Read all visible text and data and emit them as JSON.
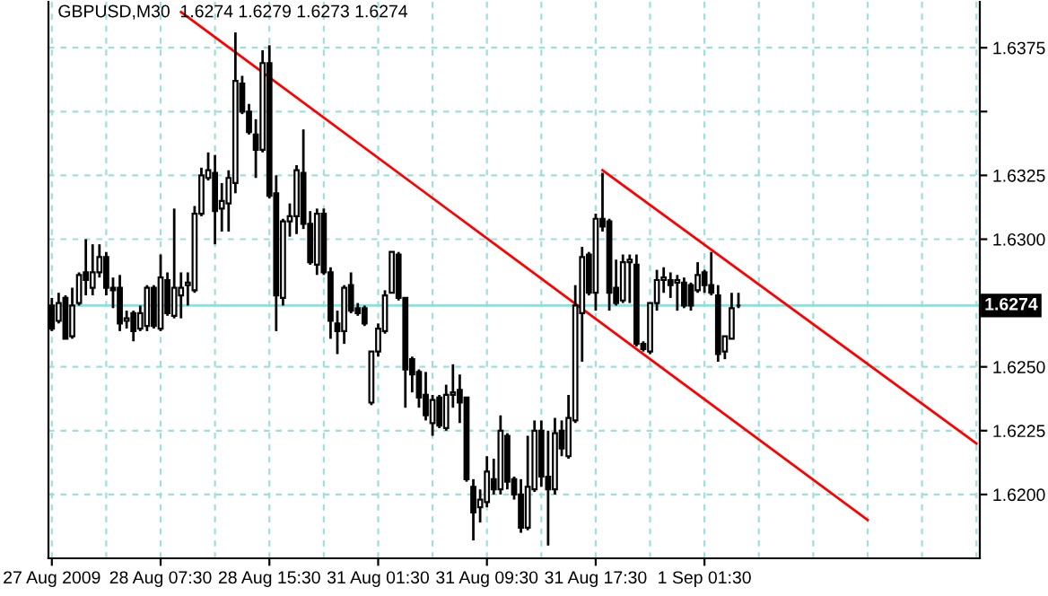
{
  "chart_data": {
    "type": "candlestick",
    "title": "GBPUSD,M30  1.6274 1.6279 1.6273 1.6274",
    "categories": [
      "27 Aug 2009",
      null,
      null,
      null,
      null,
      null,
      null,
      null,
      null,
      null,
      null,
      null,
      null,
      null,
      null,
      null,
      "28 Aug 07:30",
      null,
      null,
      null,
      null,
      null,
      null,
      null,
      null,
      null,
      null,
      null,
      null,
      null,
      null,
      null,
      "28 Aug 15:30",
      null,
      null,
      null,
      null,
      null,
      null,
      null,
      null,
      null,
      null,
      null,
      null,
      null,
      null,
      null,
      "31 Aug 01:30",
      null,
      null,
      null,
      null,
      null,
      null,
      null,
      null,
      null,
      null,
      null,
      null,
      null,
      null,
      null,
      "31 Aug 09:30",
      null,
      null,
      null,
      null,
      null,
      null,
      null,
      null,
      null,
      null,
      null,
      null,
      null,
      null,
      null,
      "31 Aug 17:30",
      null,
      null,
      null,
      null,
      null,
      null,
      null,
      null,
      null,
      null,
      null,
      null,
      null,
      null,
      null,
      "1 Sep 01:30",
      null,
      null,
      null,
      null,
      null,
      null,
      null,
      null,
      null,
      null,
      null,
      null,
      null,
      null,
      null,
      null,
      null,
      null,
      null,
      null,
      null,
      null,
      null,
      null,
      null,
      null,
      null,
      null,
      null,
      null,
      null,
      null,
      null,
      null,
      null,
      null,
      null,
      null,
      null,
      null
    ],
    "ohlc": [
      [
        1.6274,
        1.6277,
        1.6264,
        1.6265
      ],
      [
        1.6268,
        1.6279,
        1.6267,
        1.6275
      ],
      [
        1.6277,
        1.6278,
        1.6261,
        1.6261
      ],
      [
        1.6262,
        1.6281,
        1.6261,
        1.6274
      ],
      [
        1.6275,
        1.6287,
        1.6274,
        1.6286
      ],
      [
        1.6287,
        1.63,
        1.6278,
        1.6284
      ],
      [
        1.6281,
        1.6298,
        1.6278,
        1.6287
      ],
      [
        1.6287,
        1.6298,
        1.6285,
        1.6293
      ],
      [
        1.6293,
        1.6295,
        1.6278,
        1.6281
      ],
      [
        1.6281,
        1.6285,
        1.6273,
        1.628
      ],
      [
        1.6281,
        1.6286,
        1.6264,
        1.6267
      ],
      [
        1.6268,
        1.6272,
        1.6265,
        1.6269
      ],
      [
        1.6271,
        1.6272,
        1.626,
        1.6264
      ],
      [
        1.6265,
        1.6274,
        1.6264,
        1.6271
      ],
      [
        1.6266,
        1.6282,
        1.6264,
        1.6281
      ],
      [
        1.6281,
        1.6282,
        1.6265,
        1.6266
      ],
      [
        1.6265,
        1.6294,
        1.6264,
        1.6285
      ],
      [
        1.6284,
        1.6287,
        1.627,
        1.6271
      ],
      [
        1.627,
        1.6312,
        1.6269,
        1.6281
      ],
      [
        1.6278,
        1.6287,
        1.6269,
        1.6281
      ],
      [
        1.6282,
        1.6287,
        1.6274,
        1.6283
      ],
      [
        1.628,
        1.6313,
        1.6279,
        1.631
      ],
      [
        1.631,
        1.6328,
        1.6309,
        1.6325
      ],
      [
        1.6324,
        1.6334,
        1.6323,
        1.6327
      ],
      [
        1.6326,
        1.6333,
        1.6298,
        1.6311
      ],
      [
        1.6312,
        1.6322,
        1.6303,
        1.6315
      ],
      [
        1.6314,
        1.6327,
        1.6303,
        1.6324
      ],
      [
        1.6322,
        1.6381,
        1.6318,
        1.6362
      ],
      [
        1.6361,
        1.6364,
        1.6349,
        1.635
      ],
      [
        1.635,
        1.6353,
        1.6341,
        1.6342
      ],
      [
        1.6341,
        1.6347,
        1.6324,
        1.6335
      ],
      [
        1.6335,
        1.6374,
        1.6334,
        1.6369
      ],
      [
        1.6369,
        1.6376,
        1.6316,
        1.6317
      ],
      [
        1.6318,
        1.6325,
        1.6264,
        1.6278
      ],
      [
        1.6277,
        1.6308,
        1.6274,
        1.6307
      ],
      [
        1.6307,
        1.6314,
        1.6301,
        1.6309
      ],
      [
        1.6309,
        1.6329,
        1.6302,
        1.6327
      ],
      [
        1.6326,
        1.6343,
        1.6304,
        1.6306
      ],
      [
        1.6306,
        1.6311,
        1.629,
        1.6291
      ],
      [
        1.629,
        1.6312,
        1.6286,
        1.631
      ],
      [
        1.631,
        1.6312,
        1.6286,
        1.6287
      ],
      [
        1.6287,
        1.6289,
        1.6261,
        1.6268
      ],
      [
        1.6267,
        1.6272,
        1.6255,
        1.6264
      ],
      [
        1.6264,
        1.6282,
        1.6259,
        1.6281
      ],
      [
        1.6282,
        1.6287,
        1.6271,
        1.6272
      ],
      [
        1.6273,
        1.6275,
        1.627,
        1.6271
      ],
      [
        1.6273,
        1.6274,
        1.6266,
        1.6267
      ],
      [
        1.6236,
        1.6256,
        1.6235,
        1.6256
      ],
      [
        1.6256,
        1.6267,
        1.6254,
        1.6265
      ],
      [
        1.6264,
        1.628,
        1.6263,
        1.6278
      ],
      [
        1.6279,
        1.6295,
        1.6279,
        1.6295
      ],
      [
        1.6294,
        1.6295,
        1.6276,
        1.6277
      ],
      [
        1.6277,
        1.6277,
        1.6234,
        1.6249
      ],
      [
        1.6253,
        1.6254,
        1.624,
        1.6247
      ],
      [
        1.6248,
        1.6249,
        1.6234,
        1.6238
      ],
      [
        1.6239,
        1.6248,
        1.6229,
        1.6231
      ],
      [
        1.6228,
        1.6239,
        1.6223,
        1.6237
      ],
      [
        1.6238,
        1.6239,
        1.6226,
        1.6227
      ],
      [
        1.6226,
        1.6243,
        1.6225,
        1.6239
      ],
      [
        1.6239,
        1.6251,
        1.6234,
        1.624
      ],
      [
        1.6241,
        1.6247,
        1.6228,
        1.6236
      ],
      [
        1.6238,
        1.6238,
        1.6205,
        1.6206
      ],
      [
        1.6203,
        1.6206,
        1.6182,
        1.6193
      ],
      [
        1.6195,
        1.6202,
        1.6189,
        1.6198
      ],
      [
        1.6197,
        1.6215,
        1.6195,
        1.6209
      ],
      [
        1.6206,
        1.6214,
        1.62,
        1.6202
      ],
      [
        1.6202,
        1.6231,
        1.62,
        1.6225
      ],
      [
        1.6223,
        1.6224,
        1.6202,
        1.6205
      ],
      [
        1.6206,
        1.6207,
        1.6198,
        1.62
      ],
      [
        1.62,
        1.6206,
        1.6185,
        1.6187
      ],
      [
        1.6187,
        1.6223,
        1.6186,
        1.6203
      ],
      [
        1.6202,
        1.6229,
        1.6201,
        1.6225
      ],
      [
        1.6225,
        1.6229,
        1.6203,
        1.6207
      ],
      [
        1.6207,
        1.6225,
        1.618,
        1.6202
      ],
      [
        1.6202,
        1.623,
        1.62,
        1.6224
      ],
      [
        1.6225,
        1.6229,
        1.6215,
        1.6218
      ],
      [
        1.6215,
        1.6239,
        1.6214,
        1.623
      ],
      [
        1.6229,
        1.6282,
        1.6228,
        1.6274
      ],
      [
        1.6271,
        1.6297,
        1.6252,
        1.6293
      ],
      [
        1.6294,
        1.6295,
        1.6278,
        1.6279
      ],
      [
        1.6279,
        1.631,
        1.6272,
        1.6308
      ],
      [
        1.6308,
        1.6326,
        1.6303,
        1.6305
      ],
      [
        1.6307,
        1.6308,
        1.6272,
        1.6279
      ],
      [
        1.6281,
        1.6292,
        1.6274,
        1.6275
      ],
      [
        1.6276,
        1.6294,
        1.6275,
        1.6291
      ],
      [
        1.6291,
        1.6294,
        1.6275,
        1.6292
      ],
      [
        1.629,
        1.6294,
        1.6258,
        1.6259
      ],
      [
        1.6259,
        1.626,
        1.6256,
        1.6257
      ],
      [
        1.6256,
        1.6275,
        1.6255,
        1.6275
      ],
      [
        1.6275,
        1.6288,
        1.6272,
        1.6284
      ],
      [
        1.6284,
        1.6289,
        1.6279,
        1.6285
      ],
      [
        1.6284,
        1.6287,
        1.6277,
        1.6282
      ],
      [
        1.6283,
        1.6286,
        1.6272,
        1.6284
      ],
      [
        1.6283,
        1.6285,
        1.6273,
        1.6274
      ],
      [
        1.6282,
        1.6283,
        1.6272,
        1.6274
      ],
      [
        1.628,
        1.6291,
        1.6279,
        1.6286
      ],
      [
        1.6287,
        1.6288,
        1.6279,
        1.6282
      ],
      [
        1.6282,
        1.6295,
        1.6278,
        1.6279
      ],
      [
        1.6278,
        1.6282,
        1.6252,
        1.6255
      ],
      [
        1.6256,
        1.6262,
        1.6253,
        1.6262
      ],
      [
        1.6261,
        1.6279,
        1.6261,
        1.6273
      ],
      [
        1.6274,
        1.6279,
        1.6273,
        1.6274
      ],
      null,
      null,
      null,
      null,
      null,
      null,
      null,
      null,
      null,
      null,
      null,
      null,
      null,
      null,
      null,
      null,
      null,
      null,
      null,
      null,
      null,
      null,
      null,
      null,
      null,
      null,
      null,
      null,
      null,
      null,
      null,
      null,
      null,
      null,
      null
    ],
    "series": [
      {
        "type": "line",
        "color": "#ff0000",
        "values": [
          null,
          null,
          null,
          null,
          null,
          null,
          null,
          null,
          null,
          null,
          null,
          null,
          null,
          null,
          null,
          null,
          null,
          null,
          null,
          1.6389,
          null,
          null,
          null,
          null,
          null,
          null,
          null,
          null,
          null,
          null,
          null,
          null,
          null,
          null,
          null,
          null,
          null,
          null,
          null,
          null,
          null,
          null,
          null,
          null,
          null,
          null,
          null,
          null,
          null,
          null,
          null,
          null,
          null,
          null,
          null,
          null,
          null,
          null,
          null,
          null,
          null,
          null,
          null,
          null,
          null,
          null,
          null,
          null,
          null,
          null,
          null,
          null,
          null,
          null,
          null,
          null,
          null,
          null,
          null,
          null,
          null,
          null,
          null,
          null,
          null,
          null,
          null,
          null,
          null,
          null,
          null,
          null,
          null,
          null,
          null,
          null,
          null,
          null,
          null,
          null,
          null,
          null,
          null,
          null,
          null,
          null,
          null,
          null,
          null,
          null,
          null,
          null,
          null,
          null,
          null,
          null,
          null,
          null,
          null,
          null,
          1.619,
          null,
          null,
          null,
          null,
          null,
          null,
          null,
          null,
          null,
          null,
          null,
          null,
          null,
          null,
          null,
          null
        ]
      },
      {
        "type": "line",
        "color": "#ff0000",
        "values": [
          null,
          null,
          null,
          null,
          null,
          null,
          null,
          null,
          null,
          null,
          null,
          null,
          null,
          null,
          null,
          null,
          null,
          null,
          null,
          null,
          null,
          null,
          null,
          null,
          null,
          null,
          null,
          null,
          null,
          null,
          null,
          null,
          null,
          null,
          null,
          null,
          null,
          null,
          null,
          null,
          null,
          null,
          null,
          null,
          null,
          null,
          null,
          null,
          null,
          null,
          null,
          null,
          null,
          null,
          null,
          null,
          null,
          null,
          null,
          null,
          null,
          null,
          null,
          null,
          null,
          null,
          null,
          null,
          null,
          null,
          null,
          null,
          null,
          null,
          null,
          null,
          null,
          null,
          null,
          null,
          null,
          1.6327,
          null,
          null,
          null,
          null,
          null,
          null,
          null,
          null,
          null,
          null,
          null,
          null,
          null,
          null,
          null,
          null,
          null,
          null,
          null,
          null,
          null,
          null,
          null,
          null,
          null,
          null,
          null,
          null,
          null,
          null,
          null,
          null,
          null,
          null,
          null,
          null,
          null,
          null,
          null,
          null,
          null,
          null,
          null,
          null,
          null,
          null,
          null,
          null,
          null,
          null,
          null,
          null,
          null,
          null,
          1.622
        ]
      }
    ],
    "ylim": [
      1.6175,
      1.6393
    ],
    "yticks": [
      {
        "value": 1.62,
        "label": "1.6200"
      },
      1.6225,
      {
        "value": 1.625,
        "label": "1.6250"
      },
      {
        "value": 1.63,
        "label": "1.6300"
      },
      1.6325,
      {
        "value": 1.635,
        "label": null
      },
      1.6375
    ],
    "ref_lines": [
      {
        "axis": "y",
        "value": 1.6274,
        "label": "1.6274",
        "color": "#7fe5e5"
      }
    ],
    "grid": true
  }
}
